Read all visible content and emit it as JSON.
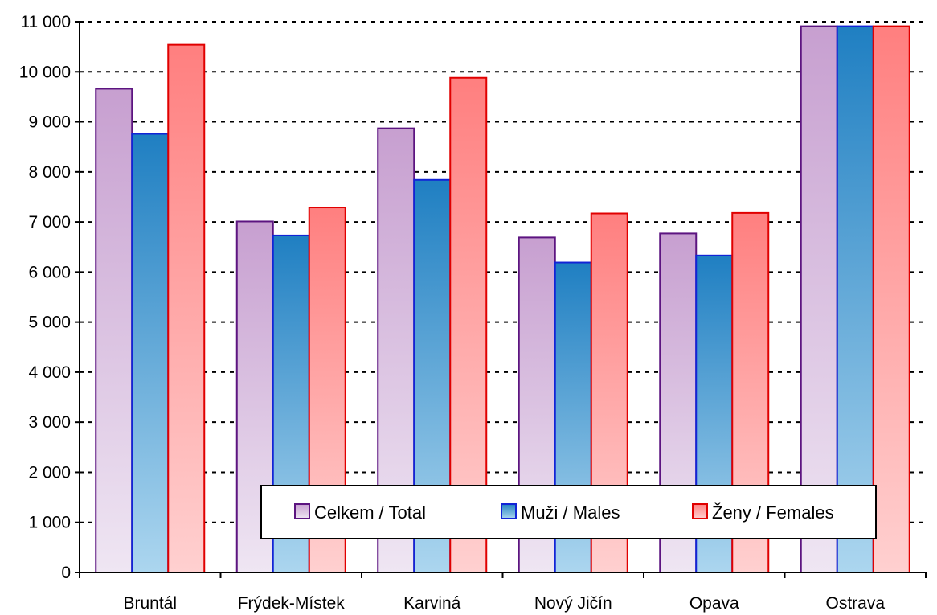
{
  "chart_data": {
    "type": "bar",
    "title": "",
    "xlabel": "",
    "ylabel": "",
    "categories": [
      "Bruntál",
      "Frýdek-Místek",
      "Karviná",
      "Nový Jičín",
      "Opava",
      "Ostrava"
    ],
    "ylim": [
      0,
      11000
    ],
    "yticks": [
      0,
      1000,
      2000,
      3000,
      4000,
      5000,
      6000,
      7000,
      8000,
      9000,
      10000,
      11000
    ],
    "ytick_labels": [
      "0",
      "1 000",
      "2 000",
      "3 000",
      "4 000",
      "5 000",
      "6 000",
      "7 000",
      "8 000",
      "9 000",
      "10 000",
      "11 000"
    ],
    "grid": "horizontal dotted",
    "legend_position": "bottom-right inside plot",
    "series": [
      {
        "name": "Celkem / Total",
        "values": [
          9660,
          7010,
          8870,
          6690,
          6770,
          10910
        ],
        "color_top": "#c79fd0",
        "color_bottom": "#efe6f3",
        "border": "#5c1480"
      },
      {
        "name": "Muži / Males",
        "values": [
          8760,
          6730,
          7840,
          6190,
          6330,
          10910
        ],
        "color_top": "#1f7fc2",
        "color_bottom": "#acd6ef",
        "border": "#1224d6"
      },
      {
        "name": "Ženy / Females",
        "values": [
          10540,
          7290,
          9880,
          7170,
          7180,
          10910
        ],
        "color_top": "#ff7f7f",
        "color_bottom": "#ffd0d0",
        "border": "#e00000"
      }
    ]
  }
}
